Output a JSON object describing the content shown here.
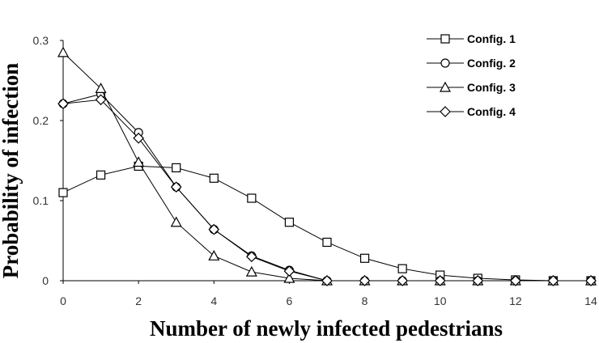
{
  "chart_data": {
    "type": "line",
    "xlabel": "Number of newly infected pedestrians",
    "ylabel": "Probability of infection",
    "xlim": [
      0,
      14
    ],
    "ylim": [
      0,
      0.3
    ],
    "xticks": [
      "0",
      "2",
      "4",
      "6",
      "8",
      "10",
      "12",
      "14"
    ],
    "yticks": [
      "0",
      "0.1",
      "0.2",
      "0.3"
    ],
    "legend_position": "top-right",
    "x": [
      0,
      1,
      2,
      3,
      4,
      5,
      6,
      7,
      8,
      9,
      10,
      11,
      12,
      13,
      14
    ],
    "series": [
      {
        "name": "Config. 1",
        "marker": "square",
        "values": [
          0.11,
          0.132,
          0.143,
          0.141,
          0.128,
          0.103,
          0.073,
          0.048,
          0.028,
          0.015,
          0.007,
          0.003,
          0.001,
          0.0,
          0.0
        ]
      },
      {
        "name": "Config. 2",
        "marker": "circle",
        "values": [
          0.221,
          0.233,
          0.185,
          0.117,
          0.064,
          0.031,
          0.013,
          0.0,
          0.0,
          0.0,
          0.0,
          0.0,
          0.0,
          0.0,
          0.0
        ]
      },
      {
        "name": "Config. 3",
        "marker": "triangle",
        "values": [
          0.285,
          0.24,
          0.148,
          0.073,
          0.031,
          0.011,
          0.003,
          0.0,
          0.0,
          0.0,
          0.0,
          0.0,
          0.0,
          0.0,
          0.0
        ]
      },
      {
        "name": "Config. 4",
        "marker": "diamond",
        "values": [
          0.221,
          0.226,
          0.178,
          0.117,
          0.064,
          0.03,
          0.012,
          0.0,
          0.0,
          0.0,
          0.0,
          0.0,
          0.0,
          0.0,
          0.0
        ]
      }
    ]
  }
}
